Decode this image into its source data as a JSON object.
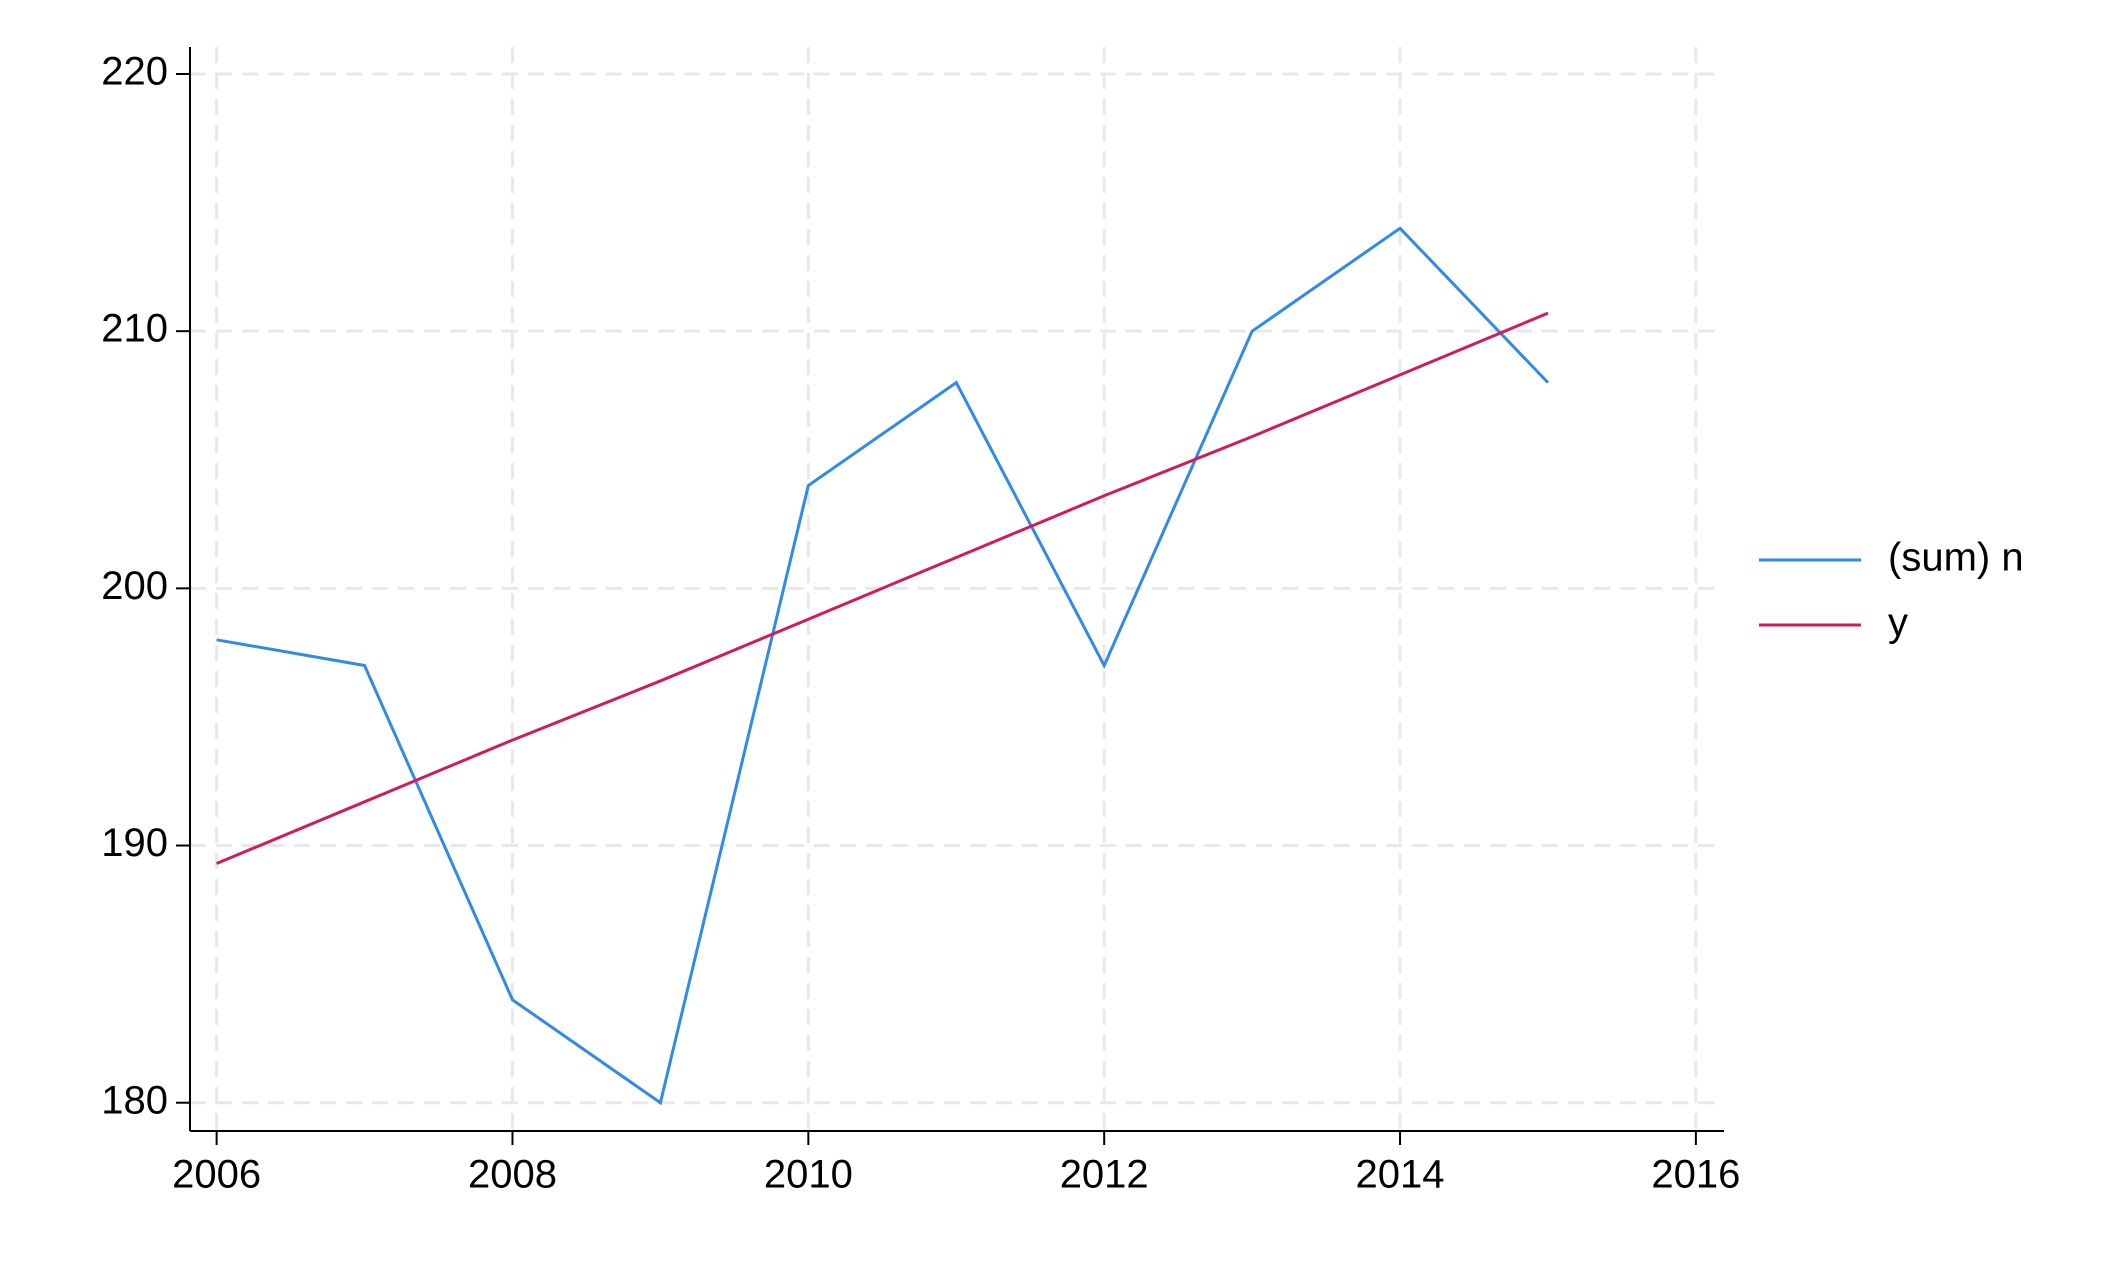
{
  "chart_data": {
    "type": "line",
    "x": [
      2006,
      2007,
      2008,
      2009,
      2010,
      2011,
      2012,
      2013,
      2014,
      2015
    ],
    "series": [
      {
        "name": "(sum) n",
        "color": "#2f8ae8",
        "values": [
          198,
          197,
          184,
          180,
          204,
          208,
          197,
          210,
          214,
          208
        ]
      },
      {
        "name": "y",
        "color": "#d01c5a",
        "values": [
          189.3,
          191.7,
          194.1,
          196.4,
          198.8,
          201.2,
          203.6,
          205.9,
          208.3,
          210.7
        ]
      }
    ],
    "xlim": [
      2005.82,
      2016.19
    ],
    "xticks": [
      2006,
      2008,
      2010,
      2012,
      2014,
      2016
    ],
    "ylim": [
      178.9,
      221.05
    ],
    "yticks": [
      180,
      190,
      200,
      210,
      220
    ],
    "grid": true,
    "legend": "right"
  }
}
